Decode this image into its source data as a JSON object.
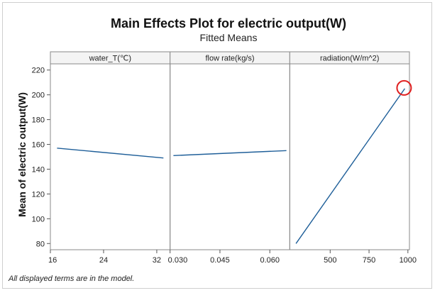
{
  "chart_data": {
    "type": "line",
    "title": "Main Effects Plot for electric output(W)",
    "subtitle": "Fitted Means",
    "ylabel": "Mean of electric output(W)",
    "ylim": [
      75,
      225
    ],
    "y_ticks": [
      80,
      100,
      120,
      140,
      160,
      180,
      200,
      220
    ],
    "grid": false,
    "footnote": "All displayed terms are in the model.",
    "panels": [
      {
        "factor": "water_T(℃)",
        "xlim": [
          16,
          34
        ],
        "x_ticks": [
          16,
          24,
          32
        ],
        "series": [
          {
            "x": [
              17,
              33
            ],
            "y": [
              157,
              149
            ]
          }
        ]
      },
      {
        "factor": "flow rate(kg/s)",
        "xlim": [
          0.03,
          0.066
        ],
        "x_ticks": [
          "0.030",
          "0.045",
          "0.060"
        ],
        "series": [
          {
            "x": [
              0.031,
              0.065
            ],
            "y": [
              151,
              155
            ]
          }
        ]
      },
      {
        "factor": "radiation(W/m^2)",
        "xlim": [
          240,
          1010
        ],
        "x_ticks": [
          500,
          750,
          1000
        ],
        "series": [
          {
            "x": [
              280,
              980
            ],
            "y": [
              80,
              205
            ]
          }
        ]
      }
    ],
    "line_color": "#1f5f99",
    "highlight_color": "#e02020"
  }
}
